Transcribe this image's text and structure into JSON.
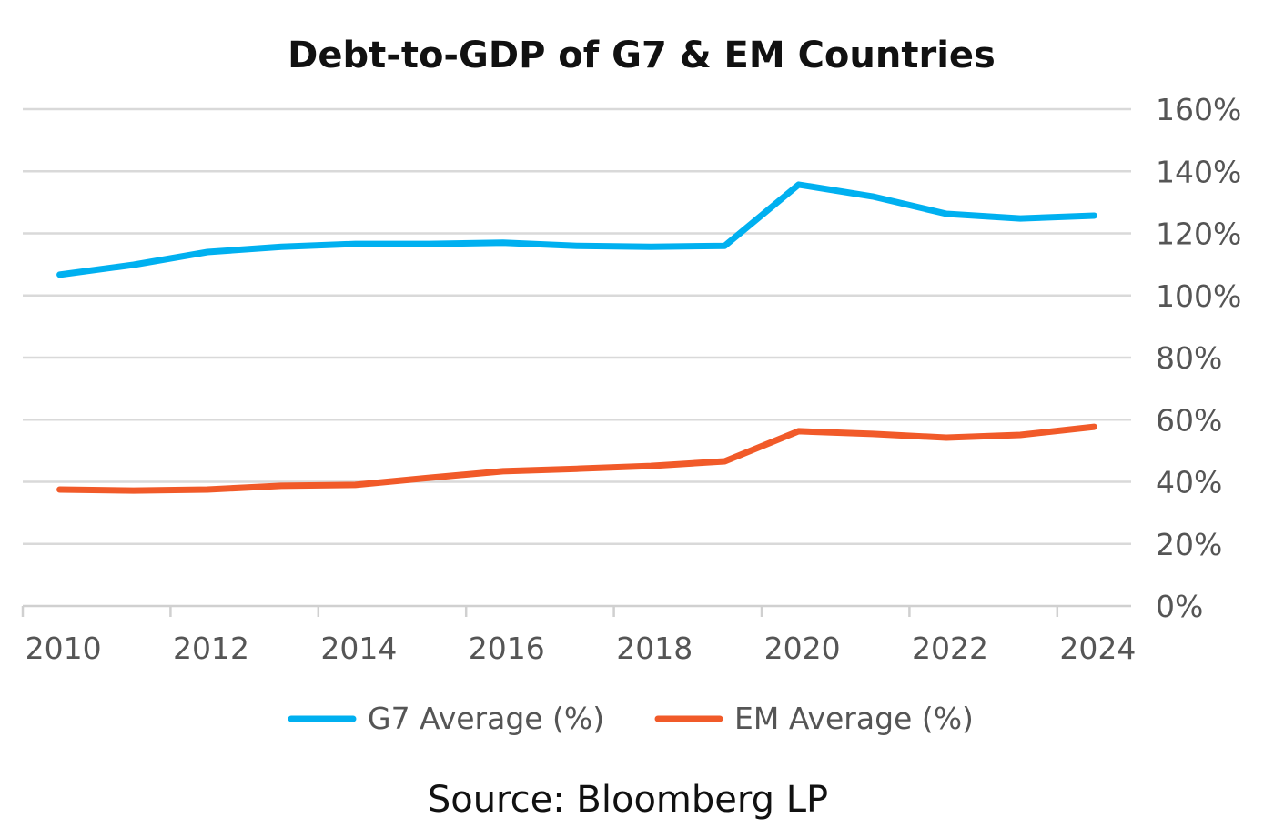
{
  "chart_data": {
    "type": "line",
    "title": "Debt-to-GDP of G7 & EM Countries",
    "source": "Source: Bloomberg LP",
    "x": [
      2010,
      2011,
      2012,
      2013,
      2014,
      2015,
      2016,
      2017,
      2018,
      2019,
      2020,
      2021,
      2022,
      2023,
      2024
    ],
    "x_tick_labels": [
      "2010",
      "2012",
      "2014",
      "2016",
      "2018",
      "2020",
      "2022",
      "2024"
    ],
    "y_tick_labels": [
      "0%",
      "20%",
      "40%",
      "60%",
      "80%",
      "100%",
      "120%",
      "140%",
      "160%"
    ],
    "ylim": [
      0,
      160
    ],
    "y_axis_side": "right",
    "grid": true,
    "legend_position": "bottom",
    "series": [
      {
        "name": "G7 Average (%)",
        "color": "#00B0F0",
        "values": [
          106.7,
          109.9,
          114,
          115.7,
          116.6,
          116.6,
          117,
          116,
          115.7,
          116,
          135.7,
          131.9,
          126.3,
          124.8,
          125.7
        ]
      },
      {
        "name": "EM Average (%)",
        "color": "#F15A29",
        "values": [
          37.5,
          37.2,
          37.5,
          38.7,
          39,
          41.3,
          43.4,
          44.2,
          45.1,
          46.6,
          56.3,
          55.4,
          54.2,
          55.1,
          57.7
        ]
      }
    ]
  }
}
